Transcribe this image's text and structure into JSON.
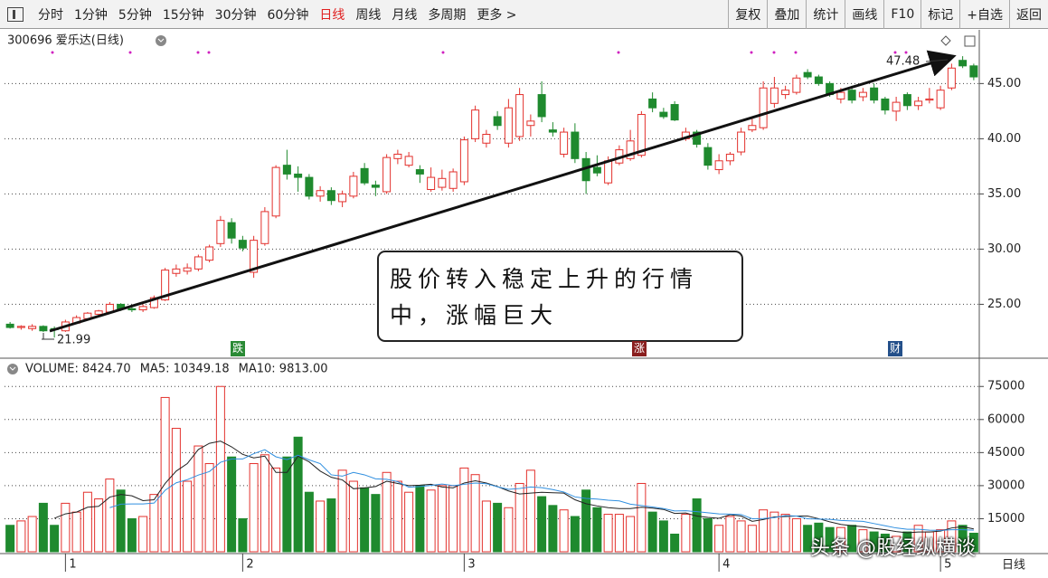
{
  "toolbar": {
    "periods": [
      {
        "label": "分时"
      },
      {
        "label": "1分钟"
      },
      {
        "label": "5分钟"
      },
      {
        "label": "15分钟"
      },
      {
        "label": "30分钟"
      },
      {
        "label": "60分钟"
      },
      {
        "label": "日线",
        "active": true
      },
      {
        "label": "周线"
      },
      {
        "label": "月线"
      },
      {
        "label": "多周期"
      },
      {
        "label": "更多 >"
      }
    ],
    "active_color": "#e02020",
    "tools": [
      "复权",
      "叠加",
      "统计",
      "画线",
      "F10",
      "标记",
      "+自选",
      "返回"
    ]
  },
  "annotation": "股价转入稳定上升的行情中，涨幅巨大",
  "events": [
    "跌",
    "涨",
    "财"
  ],
  "axis_period_label": "日线",
  "watermark": "头条 @股经纵横谈",
  "chart_data": [
    {
      "type": "candlestick",
      "title": "300696 爱乐达(日线)",
      "categories": [
        null,
        null,
        null,
        null,
        null,
        "1",
        null,
        null,
        null,
        null,
        null,
        null,
        null,
        null,
        null,
        null,
        null,
        null,
        null,
        null,
        null,
        "2",
        null,
        null,
        null,
        null,
        null,
        null,
        null,
        null,
        null,
        null,
        null,
        null,
        null,
        null,
        null,
        null,
        null,
        null,
        null,
        "3",
        null,
        null,
        null,
        null,
        null,
        null,
        null,
        null,
        null,
        null,
        null,
        null,
        null,
        null,
        null,
        null,
        null,
        null,
        null,
        null,
        null,
        null,
        "4",
        null,
        null,
        null,
        null,
        null,
        null,
        null,
        null,
        null,
        null,
        null,
        null,
        null,
        null,
        null,
        null,
        null,
        null,
        null,
        "5",
        null,
        null,
        null
      ],
      "open": [
        23.2,
        22.9,
        22.8,
        23.0,
        22.8,
        22.6,
        23.3,
        23.7,
        24.1,
        24.3,
        25.0,
        24.6,
        24.5,
        24.7,
        25.4,
        27.8,
        28.0,
        28.2,
        29.0,
        30.5,
        32.4,
        30.8,
        27.9,
        30.5,
        33.0,
        37.6,
        36.8,
        36.5,
        34.8,
        35.3,
        34.3,
        34.8,
        37.3,
        35.8,
        35.2,
        38.2,
        37.6,
        37.2,
        35.4,
        35.6,
        35.5,
        36.1,
        40.0,
        39.6,
        42.0,
        39.6,
        40.2,
        41.2,
        44.0,
        40.8,
        38.6,
        40.6,
        38.2,
        37.4,
        36.0,
        37.8,
        38.2,
        38.5,
        43.6,
        42.4,
        43.1,
        40.0,
        40.6,
        39.2,
        37.2,
        38.0,
        38.8,
        40.8,
        41.0,
        43.2,
        44.0,
        44.2,
        46.0,
        45.6,
        45.0,
        43.6,
        44.4,
        43.8,
        44.6,
        43.6,
        42.5,
        44.0,
        43.0,
        43.5,
        42.8,
        44.6,
        47.1,
        46.6
      ],
      "high": [
        23.4,
        23.1,
        23.2,
        23.1,
        23.0,
        23.6,
        24.0,
        24.3,
        24.5,
        25.2,
        25.1,
        24.9,
        25.0,
        25.8,
        28.3,
        28.6,
        28.7,
        29.5,
        30.4,
        33.0,
        32.8,
        31.2,
        31.2,
        33.8,
        37.6,
        39.0,
        37.5,
        36.8,
        35.7,
        35.6,
        35.3,
        37.0,
        37.8,
        36.2,
        38.6,
        39.0,
        38.8,
        37.6,
        37.4,
        37.2,
        37.3,
        40.2,
        43.0,
        40.8,
        42.5,
        43.6,
        44.6,
        42.2,
        45.2,
        41.5,
        41.0,
        41.4,
        38.8,
        38.5,
        38.4,
        39.4,
        40.8,
        42.5,
        44.2,
        42.8,
        43.4,
        41.0,
        40.8,
        39.6,
        38.6,
        38.8,
        41.0,
        41.8,
        45.2,
        45.6,
        44.8,
        45.8,
        46.3,
        45.8,
        45.2,
        44.6,
        44.8,
        44.6,
        45.0,
        43.8,
        43.8,
        44.2,
        43.8,
        44.6,
        44.8,
        46.8,
        47.48,
        46.8
      ],
      "low": [
        22.8,
        22.7,
        22.6,
        22.5,
        21.99,
        22.5,
        23.2,
        23.6,
        23.9,
        24.2,
        24.4,
        24.3,
        24.3,
        24.6,
        25.3,
        27.5,
        27.7,
        28.0,
        28.8,
        30.2,
        30.5,
        29.8,
        27.4,
        30.3,
        32.8,
        36.3,
        35.2,
        34.5,
        34.3,
        34.0,
        33.8,
        34.6,
        35.8,
        34.8,
        35.0,
        37.7,
        37.4,
        36.0,
        35.2,
        35.3,
        35.2,
        35.8,
        39.7,
        39.2,
        40.8,
        39.2,
        39.8,
        40.2,
        41.5,
        40.2,
        38.3,
        37.8,
        35.0,
        36.6,
        35.8,
        37.6,
        38.0,
        38.3,
        42.4,
        41.8,
        41.6,
        39.8,
        39.2,
        37.2,
        36.8,
        37.6,
        38.5,
        40.6,
        40.8,
        42.8,
        43.6,
        44.0,
        45.4,
        44.8,
        43.8,
        43.2,
        43.2,
        43.4,
        43.2,
        42.2,
        41.6,
        42.6,
        42.6,
        43.2,
        42.6,
        44.4,
        46.4,
        45.3
      ],
      "close": [
        22.9,
        23.0,
        23.0,
        22.6,
        22.7,
        23.4,
        23.8,
        24.2,
        24.4,
        25.0,
        24.6,
        24.5,
        24.8,
        25.6,
        28.1,
        28.2,
        28.3,
        29.3,
        30.2,
        32.6,
        31.0,
        30.1,
        30.8,
        33.4,
        37.4,
        36.8,
        36.5,
        34.8,
        35.3,
        34.4,
        35.0,
        36.6,
        36.0,
        35.6,
        38.3,
        38.6,
        38.4,
        36.8,
        36.5,
        36.4,
        37.0,
        39.9,
        42.6,
        40.4,
        41.2,
        42.8,
        44.0,
        41.6,
        42.0,
        40.6,
        40.6,
        38.2,
        36.2,
        36.9,
        38.0,
        39.0,
        39.8,
        42.2,
        42.8,
        42.0,
        41.7,
        40.6,
        39.5,
        37.6,
        38.0,
        38.6,
        40.6,
        41.2,
        44.6,
        44.6,
        44.4,
        45.5,
        45.6,
        45.0,
        44.0,
        44.2,
        43.5,
        44.2,
        43.5,
        42.6,
        43.3,
        43.0,
        43.4,
        43.6,
        44.4,
        46.4,
        46.6,
        45.6
      ],
      "up_color": "#e3302c",
      "down_color": "#1f8a2e",
      "ylim": [
        20.2,
        49.7
      ],
      "yticks": [
        {
          "value": 25,
          "label": "25.00"
        },
        {
          "value": 30,
          "label": "30.00"
        },
        {
          "value": 35,
          "label": "35.00"
        },
        {
          "value": 40,
          "label": "40.00"
        },
        {
          "value": 45,
          "label": "45.00"
        }
      ],
      "grid": true
    },
    {
      "type": "bar",
      "legend": [
        "VOLUME: 8424.70",
        "MA5: 10349.18",
        "MA10: 9813.00"
      ],
      "values": [
        12000,
        14000,
        16000,
        22000,
        12000,
        22000,
        18000,
        27000,
        24000,
        33000,
        28000,
        15000,
        16000,
        26000,
        70000,
        56000,
        32000,
        48000,
        40000,
        75000,
        43000,
        15000,
        40000,
        44000,
        38000,
        43000,
        52000,
        27000,
        23000,
        24000,
        37000,
        32000,
        29000,
        26000,
        36000,
        32000,
        27000,
        30000,
        28000,
        30000,
        30000,
        38000,
        35000,
        23000,
        22000,
        20000,
        31000,
        37000,
        25000,
        21000,
        19000,
        16000,
        28000,
        20000,
        17000,
        17000,
        16000,
        31000,
        18000,
        14000,
        8000,
        17000,
        24000,
        15000,
        12000,
        16000,
        14000,
        12000,
        19000,
        18000,
        17000,
        15000,
        12000,
        13000,
        11000,
        11000,
        12000,
        10000,
        9000,
        8000,
        7000,
        9000,
        12000,
        9000,
        10000,
        14000,
        12000,
        8424.7
      ],
      "lines": [
        {
          "color": "#222222",
          "values": [
            null,
            null,
            null,
            null,
            15200,
            17200,
            18000,
            20200,
            20600,
            24800,
            26000,
            25400,
            23200,
            23600,
            31000,
            36600,
            40000,
            46400,
            49200,
            50200,
            47600,
            44200,
            42600,
            43400,
            36000,
            36000,
            43400,
            40800,
            36600,
            33800,
            32600,
            28600,
            29000,
            29600,
            32000,
            31000,
            30000,
            30200,
            30600,
            29400,
            29000,
            31200,
            32200,
            31200,
            29600,
            27600,
            26200,
            26600,
            27000,
            26800,
            26600,
            23600,
            21800,
            20800,
            20000,
            19600,
            19600,
            20200,
            19800,
            19200,
            17400,
            17600,
            16200,
            15600,
            15200,
            16800,
            16200,
            13800,
            14600,
            15800,
            16000,
            16200,
            16200,
            15000,
            13600,
            12400,
            11800,
            11400,
            10600,
            10000,
            9200,
            8600,
            9000,
            9000,
            9400,
            10800,
            11400,
            10349.18
          ]
        },
        {
          "color": "#2f8fe0",
          "values": [
            null,
            null,
            null,
            null,
            null,
            null,
            null,
            null,
            null,
            20000,
            21600,
            21700,
            21700,
            22100,
            27900,
            31300,
            32700,
            34800,
            36400,
            40600,
            42100,
            42100,
            44500,
            46300,
            43100,
            41800,
            43800,
            41700,
            40000,
            34900,
            34300,
            36000,
            34900,
            33100,
            32900,
            31800,
            29300,
            29600,
            30100,
            30700,
            30000,
            30600,
            31200,
            30900,
            29500,
            28300,
            28700,
            29400,
            29100,
            28200,
            27100,
            24900,
            24200,
            23900,
            23400,
            23100,
            21600,
            21000,
            20300,
            19600,
            18500,
            18600,
            18200,
            17700,
            17200,
            17100,
            16900,
            15000,
            15100,
            15500,
            16400,
            16200,
            15000,
            14800,
            14700,
            14200,
            14000,
            13800,
            12800,
            11800,
            10800,
            10200,
            10200,
            9800,
            9700,
            10000,
            10000,
            9813
          ]
        }
      ],
      "ylim": [
        0,
        87000
      ],
      "yticks": [
        15000,
        30000,
        45000,
        60000,
        75000
      ],
      "grid": true
    }
  ]
}
